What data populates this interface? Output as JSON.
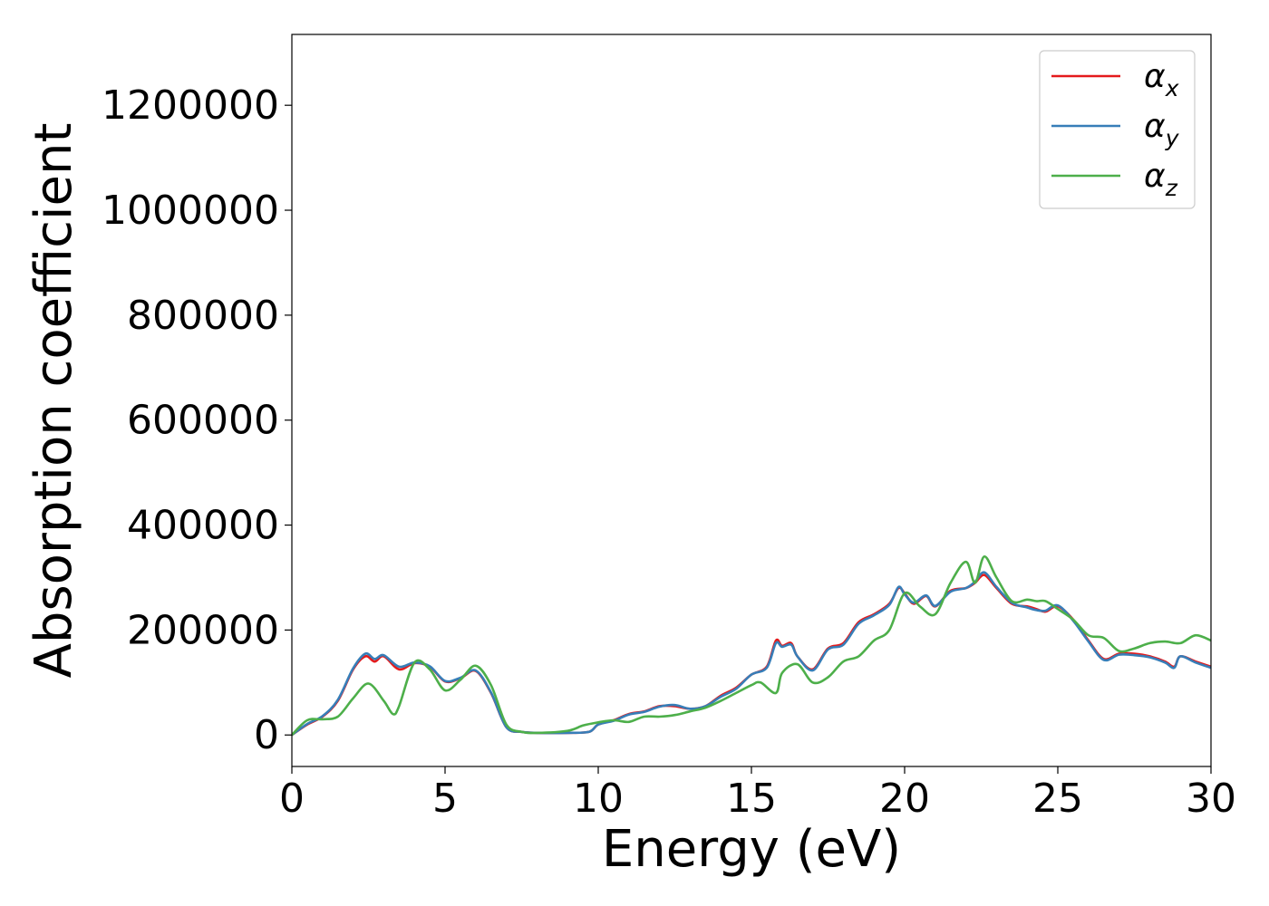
{
  "chart_data": {
    "type": "line",
    "title": "",
    "xlabel": "Energy (eV)",
    "ylabel": "Absorption coefficient",
    "xlim": [
      0,
      30
    ],
    "ylim": [
      -60000,
      1335000
    ],
    "xticks": [
      0,
      5,
      10,
      15,
      20,
      25,
      30
    ],
    "xtick_labels": [
      "0",
      "5",
      "10",
      "15",
      "20",
      "25",
      "30"
    ],
    "yticks": [
      0,
      200000,
      400000,
      600000,
      800000,
      1000000,
      1200000
    ],
    "ytick_labels": [
      "0",
      "200000",
      "400000",
      "600000",
      "800000",
      "1000000",
      "1200000"
    ],
    "grid": false,
    "legend_position": "top-right",
    "series": [
      {
        "name": "α",
        "subscript": "x",
        "color": "#e41a1c",
        "x": [
          0,
          0.5,
          1,
          1.5,
          2,
          2.4,
          2.7,
          3,
          3.5,
          4,
          4.5,
          5,
          5.5,
          6,
          6.5,
          7,
          7.5,
          8,
          9,
          9.7,
          10,
          10.5,
          11,
          11.5,
          12,
          12.5,
          13,
          13.5,
          14,
          14.5,
          15,
          15.5,
          15.8,
          16,
          16.3,
          16.5,
          17,
          17.5,
          18,
          18.5,
          19,
          19.5,
          19.8,
          20,
          20.3,
          20.7,
          21,
          21.5,
          22,
          22.3,
          22.6,
          23,
          23.5,
          24,
          24.3,
          24.6,
          25,
          25.5,
          26,
          26.5,
          27,
          27.5,
          28,
          28.5,
          28.8,
          29,
          29.5,
          30
        ],
        "y": [
          0,
          20000,
          35000,
          65000,
          125000,
          150000,
          140000,
          150000,
          125000,
          137000,
          130000,
          102000,
          108000,
          122000,
          80000,
          15000,
          6000,
          4000,
          4000,
          6000,
          20000,
          28000,
          40000,
          45000,
          55000,
          55000,
          50000,
          55000,
          75000,
          90000,
          115000,
          130000,
          180000,
          170000,
          175000,
          150000,
          125000,
          165000,
          175000,
          215000,
          230000,
          250000,
          280000,
          270000,
          250000,
          265000,
          245000,
          275000,
          280000,
          290000,
          305000,
          280000,
          250000,
          245000,
          240000,
          235000,
          245000,
          220000,
          180000,
          145000,
          155000,
          155000,
          150000,
          140000,
          130000,
          150000,
          140000,
          130000
        ]
      },
      {
        "name": "α",
        "subscript": "y",
        "color": "#377eb8",
        "x": [
          0,
          0.5,
          1,
          1.5,
          2,
          2.4,
          2.7,
          3,
          3.5,
          4,
          4.5,
          5,
          5.5,
          6,
          6.5,
          7,
          7.5,
          8,
          9,
          9.7,
          10,
          10.5,
          11,
          11.5,
          12,
          12.5,
          13,
          13.5,
          14,
          14.5,
          15,
          15.5,
          15.8,
          16,
          16.3,
          16.5,
          17,
          17.5,
          18,
          18.5,
          19,
          19.5,
          19.8,
          20,
          20.3,
          20.7,
          21,
          21.5,
          22,
          22.3,
          22.6,
          23,
          23.5,
          24,
          24.3,
          24.6,
          25,
          25.5,
          26,
          26.5,
          27,
          27.5,
          28,
          28.5,
          28.8,
          29,
          29.5,
          30
        ],
        "y": [
          0,
          21000,
          36000,
          67000,
          127000,
          155000,
          145000,
          152000,
          130000,
          138000,
          131000,
          103000,
          109000,
          123000,
          81000,
          15000,
          6000,
          4000,
          4000,
          6000,
          20000,
          27000,
          39000,
          44000,
          54000,
          57000,
          50000,
          55000,
          73000,
          88000,
          115000,
          128000,
          175000,
          168000,
          172000,
          150000,
          123000,
          163000,
          172000,
          212000,
          228000,
          248000,
          282000,
          268000,
          252000,
          266000,
          246000,
          273000,
          280000,
          292000,
          310000,
          282000,
          252000,
          243000,
          238000,
          237000,
          247000,
          218000,
          178000,
          143000,
          153000,
          152000,
          148000,
          138000,
          128000,
          150000,
          138000,
          128000
        ]
      },
      {
        "name": "α",
        "subscript": "z",
        "color": "#4daf4a",
        "x": [
          0,
          0.5,
          1,
          1.5,
          2,
          2.5,
          3,
          3.3,
          3.5,
          4,
          4.5,
          5,
          5.5,
          6,
          6.5,
          7,
          7.5,
          8,
          9,
          9.5,
          10,
          10.5,
          11,
          11.5,
          12,
          12.5,
          13,
          13.5,
          14,
          14.5,
          15,
          15.3,
          15.8,
          16,
          16.5,
          17,
          17.5,
          18,
          18.5,
          19,
          19.5,
          20,
          20.5,
          21,
          21.5,
          22,
          22.3,
          22.6,
          23,
          23.5,
          24,
          24.3,
          24.6,
          25,
          25.5,
          26,
          26.5,
          27,
          27.5,
          28,
          28.5,
          29,
          29.5,
          30
        ],
        "y": [
          0,
          28000,
          30000,
          35000,
          70000,
          98000,
          65000,
          40000,
          55000,
          138000,
          125000,
          85000,
          105000,
          132000,
          95000,
          20000,
          6000,
          4000,
          8000,
          18000,
          24000,
          28000,
          25000,
          35000,
          35000,
          38000,
          45000,
          52000,
          65000,
          80000,
          95000,
          100000,
          80000,
          118000,
          135000,
          100000,
          110000,
          140000,
          150000,
          180000,
          200000,
          270000,
          245000,
          230000,
          290000,
          330000,
          290000,
          340000,
          300000,
          255000,
          258000,
          255000,
          255000,
          240000,
          220000,
          190000,
          185000,
          160000,
          165000,
          175000,
          178000,
          175000,
          190000,
          180000
        ]
      }
    ]
  }
}
